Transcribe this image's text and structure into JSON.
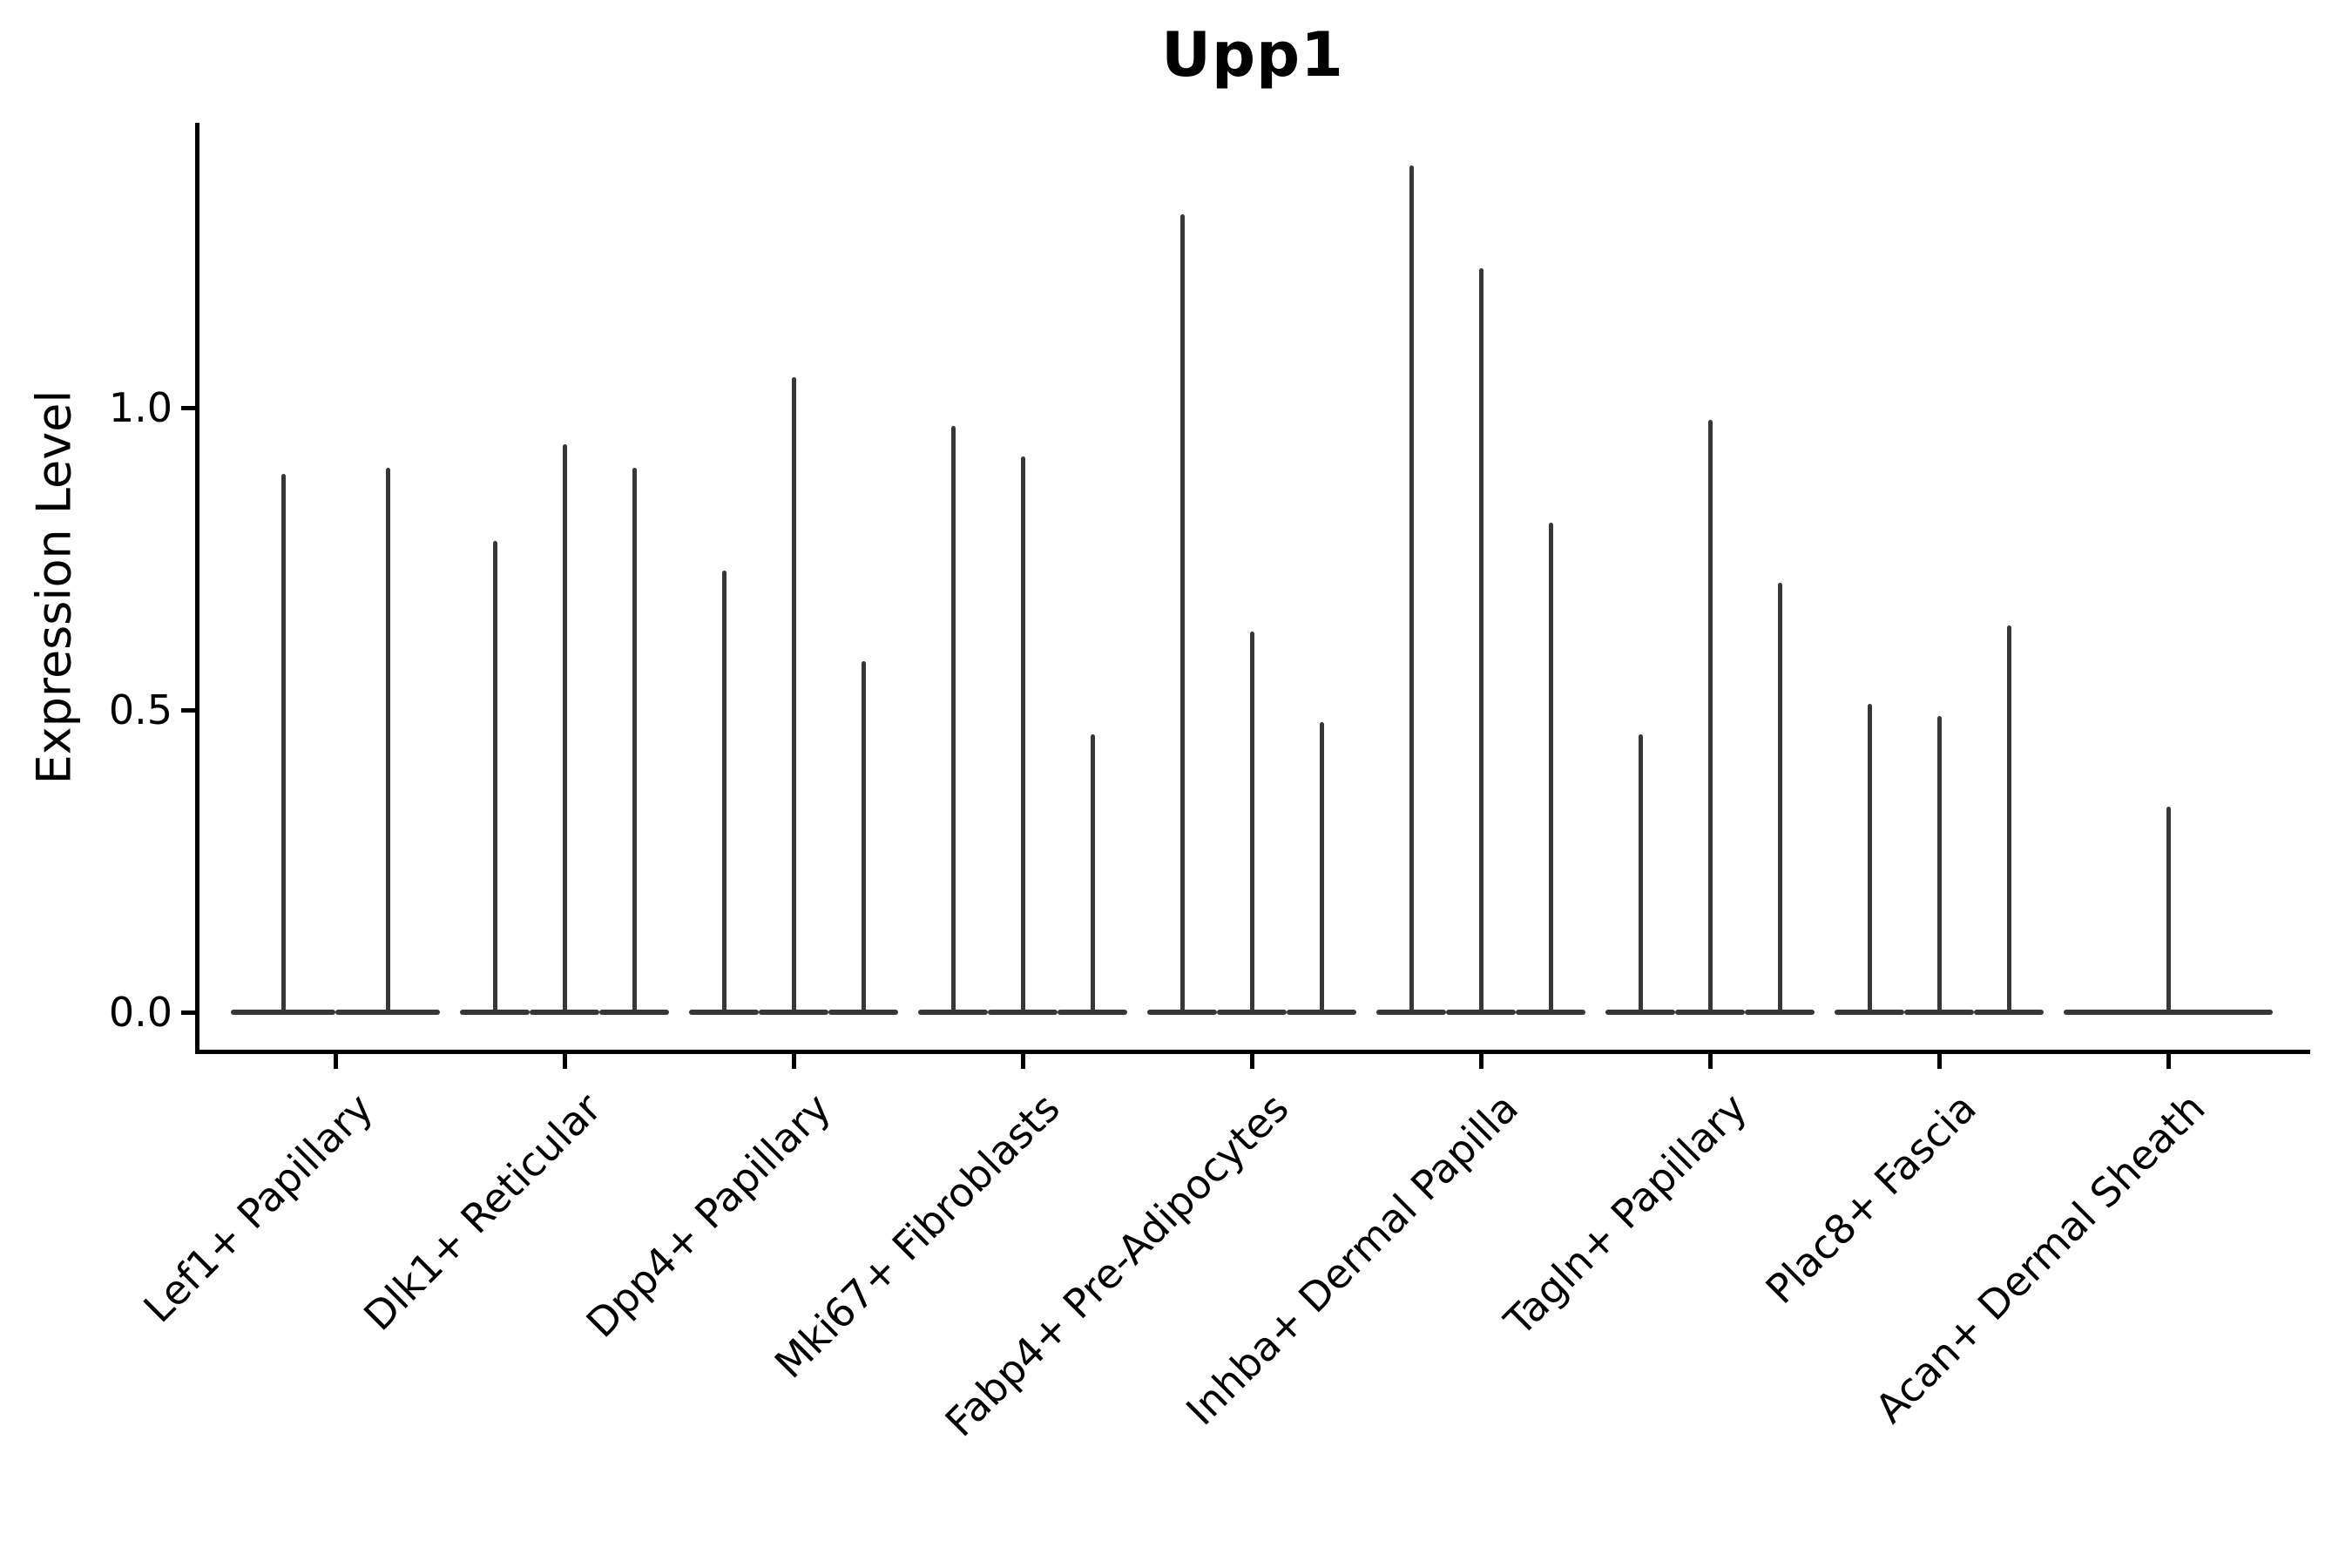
{
  "figure": {
    "background_color": "#ffffff",
    "violin_color": "#373737",
    "axis_color": "#000000",
    "text_color": "#000000"
  },
  "chart_data": {
    "type": "violin",
    "title": "Upp1",
    "xlabel": "",
    "ylabel": "Expression Level",
    "legend": "none",
    "grid": false,
    "ylim": [
      -0.07,
      1.47
    ],
    "ytick_labels": [
      "0.0",
      "0.5",
      "1.0"
    ],
    "ytick_values": [
      0.0,
      0.5,
      1.0
    ],
    "xtick_rotation_deg": 45,
    "categories": [
      "Lef1+ Papillary",
      "Dlk1+ Reticular",
      "Dpp4+ Papillary",
      "Mki67+ Fibroblasts",
      "Fabp4+ Pre-Adipocytes",
      "Inhba+ Dermal Papilla",
      "Tagln+ Papillary",
      "Plac8+ Fascia",
      "Acan+ Dermal Sheath"
    ],
    "description": "Each category shows 1-3 very narrow violins: expression mass concentrated at 0 (flat lens at baseline) with a thin spike rising to the maximum expression value.",
    "groups": [
      {
        "category": "Lef1+ Papillary",
        "violin_max_values": [
          0.89,
          0.9
        ]
      },
      {
        "category": "Dlk1+ Reticular",
        "violin_max_values": [
          0.78,
          0.94,
          0.9
        ]
      },
      {
        "category": "Dpp4+ Papillary",
        "violin_max_values": [
          0.73,
          1.05,
          0.58
        ]
      },
      {
        "category": "Mki67+ Fibroblasts",
        "violin_max_values": [
          0.97,
          0.92,
          0.46
        ]
      },
      {
        "category": "Fabp4+ Pre-Adipocytes",
        "violin_max_values": [
          1.32,
          0.63,
          0.48
        ]
      },
      {
        "category": "Inhba+ Dermal Papilla",
        "violin_max_values": [
          1.4,
          1.23,
          0.81
        ]
      },
      {
        "category": "Tagln+ Papillary",
        "violin_max_values": [
          0.46,
          0.98,
          0.71
        ]
      },
      {
        "category": "Plac8+ Fascia",
        "violin_max_values": [
          0.51,
          0.49,
          0.64
        ]
      },
      {
        "category": "Acan+ Dermal Sheath",
        "violin_max_values": [
          0.34
        ]
      }
    ]
  }
}
